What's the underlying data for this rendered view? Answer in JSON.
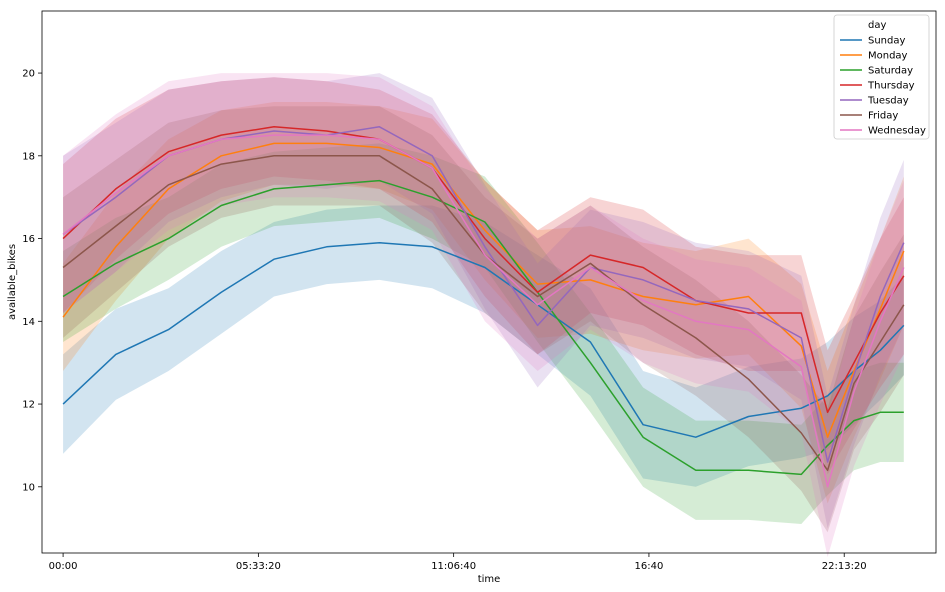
{
  "chart_data": {
    "type": "line",
    "xlabel": "time",
    "ylabel": "available_bikes",
    "x_range_seconds": [
      -2160,
      89400
    ],
    "ylim": [
      8.4,
      21.5
    ],
    "x_ticks": [
      {
        "value": 0,
        "label": "00:00"
      },
      {
        "value": 20000,
        "label": "05:33:20"
      },
      {
        "value": 40000,
        "label": "11:06:40"
      },
      {
        "value": 60000,
        "label": "16:40"
      },
      {
        "value": 80000,
        "label": "22:13:20"
      }
    ],
    "y_ticks": [
      10,
      12,
      14,
      16,
      18,
      20
    ],
    "grid": false,
    "legend": {
      "title": "day",
      "position": "top-right"
    },
    "x_seconds": [
      0,
      5400,
      10800,
      16200,
      21600,
      27000,
      32400,
      37800,
      43200,
      48600,
      54000,
      59400,
      64800,
      70200,
      75600,
      78300,
      81000,
      83700,
      86100
    ],
    "series": [
      {
        "name": "Sunday",
        "color": "#1f77b4",
        "values": [
          12.0,
          13.2,
          13.8,
          14.7,
          15.5,
          15.8,
          15.9,
          15.8,
          15.3,
          14.4,
          13.5,
          11.5,
          11.2,
          11.7,
          11.9,
          12.2,
          12.8,
          13.3,
          13.9
        ],
        "band": [
          1.2,
          1.1,
          1.0,
          1.0,
          0.9,
          0.9,
          0.9,
          1.0,
          1.1,
          1.2,
          1.3,
          1.3,
          1.2,
          1.2,
          1.2,
          1.3,
          1.3,
          1.2,
          1.2
        ]
      },
      {
        "name": "Monday",
        "color": "#ff7f0e",
        "values": [
          14.1,
          15.8,
          17.2,
          18.0,
          18.3,
          18.3,
          18.2,
          17.8,
          16.2,
          14.9,
          15.0,
          14.6,
          14.4,
          14.6,
          13.4,
          11.2,
          12.8,
          14.3,
          15.7
        ],
        "band": [
          1.3,
          1.3,
          1.2,
          1.1,
          1.0,
          1.0,
          1.0,
          1.1,
          1.2,
          1.3,
          1.3,
          1.3,
          1.3,
          1.4,
          1.5,
          1.6,
          1.6,
          1.7,
          1.8
        ]
      },
      {
        "name": "Saturday",
        "color": "#2ca02c",
        "values": [
          14.6,
          15.4,
          16.0,
          16.8,
          17.2,
          17.3,
          17.4,
          17.0,
          16.4,
          14.7,
          13.0,
          11.2,
          10.4,
          10.4,
          10.3,
          11.0,
          11.6,
          11.8,
          11.8
        ],
        "band": [
          1.1,
          1.1,
          1.0,
          1.0,
          0.9,
          0.9,
          0.9,
          1.0,
          1.1,
          1.2,
          1.2,
          1.2,
          1.2,
          1.2,
          1.2,
          1.2,
          1.2,
          1.2,
          1.2
        ]
      },
      {
        "name": "Thursday",
        "color": "#d62728",
        "values": [
          16.0,
          17.2,
          18.1,
          18.5,
          18.7,
          18.6,
          18.4,
          17.7,
          16.0,
          14.7,
          15.6,
          15.3,
          14.5,
          14.2,
          14.2,
          11.8,
          13.0,
          14.2,
          15.1
        ],
        "band": [
          1.8,
          1.7,
          1.5,
          1.3,
          1.2,
          1.2,
          1.2,
          1.3,
          1.4,
          1.5,
          1.4,
          1.4,
          1.3,
          1.4,
          1.4,
          1.5,
          1.6,
          1.8,
          1.9
        ]
      },
      {
        "name": "Tuesday",
        "color": "#9467bd",
        "values": [
          16.1,
          17.0,
          18.0,
          18.4,
          18.6,
          18.5,
          18.7,
          18.0,
          15.8,
          13.9,
          15.3,
          15.0,
          14.5,
          14.3,
          13.6,
          10.6,
          12.7,
          14.6,
          15.9
        ],
        "band": [
          1.9,
          1.8,
          1.6,
          1.4,
          1.3,
          1.3,
          1.3,
          1.4,
          1.5,
          1.5,
          1.4,
          1.4,
          1.4,
          1.4,
          1.5,
          1.6,
          1.7,
          1.9,
          2.0
        ]
      },
      {
        "name": "Friday",
        "color": "#8c564b",
        "values": [
          15.3,
          16.3,
          17.3,
          17.8,
          18.0,
          18.0,
          18.0,
          17.2,
          15.6,
          14.6,
          15.4,
          14.4,
          13.6,
          12.6,
          11.3,
          10.4,
          12.5,
          13.5,
          14.4
        ],
        "band": [
          1.7,
          1.6,
          1.5,
          1.3,
          1.2,
          1.2,
          1.2,
          1.3,
          1.4,
          1.4,
          1.4,
          1.4,
          1.4,
          1.4,
          1.4,
          1.5,
          1.6,
          1.7,
          1.7
        ]
      },
      {
        "name": "Wednesday",
        "color": "#e377c2",
        "values": [
          16.1,
          17.1,
          18.0,
          18.4,
          18.5,
          18.5,
          18.4,
          17.7,
          15.6,
          14.4,
          15.3,
          14.5,
          14.0,
          13.8,
          12.9,
          10.0,
          12.3,
          14.0,
          15.3
        ],
        "band": [
          1.9,
          1.9,
          1.8,
          1.6,
          1.5,
          1.5,
          1.5,
          1.5,
          1.6,
          1.6,
          1.5,
          1.5,
          1.5,
          1.5,
          1.6,
          1.7,
          1.8,
          2.0,
          2.1
        ]
      }
    ]
  }
}
